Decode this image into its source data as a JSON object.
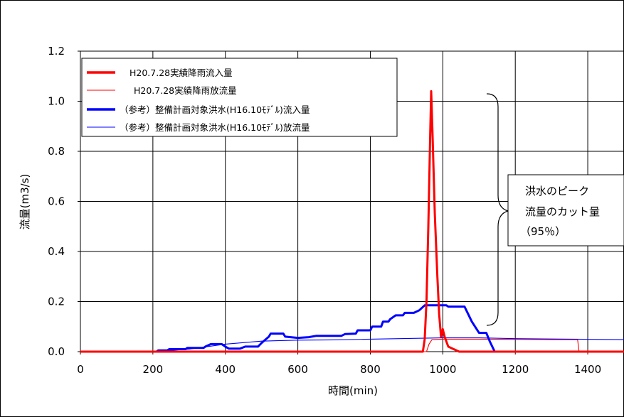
{
  "chart_data": {
    "type": "line",
    "title": "",
    "xlabel": "時間(min)",
    "ylabel": "流量(m3/s)",
    "xlim": [
      0,
      1500
    ],
    "ylim": [
      0,
      1.2
    ],
    "xticks": [
      "0",
      "200",
      "400",
      "600",
      "800",
      "1000",
      "1200",
      "1400"
    ],
    "yticks": [
      "0.0",
      "0.2",
      "0.4",
      "0.6",
      "0.8",
      "1.0",
      "1.2"
    ],
    "grid": true,
    "legend_position": "top-left",
    "series": [
      {
        "name": "H20.7.28実績降雨流入量",
        "color": "#ff0000",
        "width": "thick",
        "points": [
          [
            0,
            0
          ],
          [
            945,
            0
          ],
          [
            950,
            0.05
          ],
          [
            955,
            0.2
          ],
          [
            960,
            0.5
          ],
          [
            965,
            0.85
          ],
          [
            968,
            1.04
          ],
          [
            972,
            0.85
          ],
          [
            978,
            0.55
          ],
          [
            985,
            0.3
          ],
          [
            990,
            0.15
          ],
          [
            995,
            0.06
          ],
          [
            1000,
            0.09
          ],
          [
            1005,
            0.06
          ],
          [
            1010,
            0.04
          ],
          [
            1015,
            0.02
          ],
          [
            1030,
            0.01
          ],
          [
            1045,
            0
          ],
          [
            1500,
            0
          ]
        ]
      },
      {
        "name": "H20.7.28実績降雨放流量",
        "color": "#ff0000",
        "width": "thin",
        "points": [
          [
            0,
            0
          ],
          [
            955,
            0
          ],
          [
            962,
            0.03
          ],
          [
            970,
            0.048
          ],
          [
            1000,
            0.05
          ],
          [
            1100,
            0.05
          ],
          [
            1200,
            0.049
          ],
          [
            1300,
            0.048
          ],
          [
            1372,
            0.048
          ],
          [
            1376,
            0
          ],
          [
            1500,
            0
          ]
        ]
      },
      {
        "name": "（参考）整備計画対象洪水(H16.10ﾓﾃﾞﾙ)流入量",
        "color": "#0000ff",
        "width": "thick",
        "points": [
          [
            0,
            0
          ],
          [
            210,
            0
          ],
          [
            215,
            0.005
          ],
          [
            240,
            0.005
          ],
          [
            245,
            0.01
          ],
          [
            290,
            0.01
          ],
          [
            295,
            0.015
          ],
          [
            340,
            0.015
          ],
          [
            345,
            0.02
          ],
          [
            360,
            0.03
          ],
          [
            390,
            0.03
          ],
          [
            400,
            0.02
          ],
          [
            410,
            0.012
          ],
          [
            440,
            0.012
          ],
          [
            455,
            0.02
          ],
          [
            490,
            0.02
          ],
          [
            500,
            0.035
          ],
          [
            520,
            0.06
          ],
          [
            525,
            0.072
          ],
          [
            560,
            0.072
          ],
          [
            565,
            0.06
          ],
          [
            600,
            0.055
          ],
          [
            630,
            0.058
          ],
          [
            650,
            0.063
          ],
          [
            720,
            0.063
          ],
          [
            730,
            0.07
          ],
          [
            760,
            0.072
          ],
          [
            765,
            0.085
          ],
          [
            800,
            0.085
          ],
          [
            805,
            0.1
          ],
          [
            830,
            0.1
          ],
          [
            835,
            0.12
          ],
          [
            850,
            0.12
          ],
          [
            855,
            0.13
          ],
          [
            870,
            0.145
          ],
          [
            890,
            0.145
          ],
          [
            895,
            0.155
          ],
          [
            920,
            0.155
          ],
          [
            935,
            0.165
          ],
          [
            950,
            0.185
          ],
          [
            1010,
            0.185
          ],
          [
            1015,
            0.18
          ],
          [
            1060,
            0.18
          ],
          [
            1080,
            0.12
          ],
          [
            1100,
            0.075
          ],
          [
            1120,
            0.075
          ],
          [
            1130,
            0.04
          ],
          [
            1140,
            0.01
          ],
          [
            1143,
            0
          ],
          [
            1500,
            0
          ]
        ]
      },
      {
        "name": "（参考）整備計画対象洪水(H16.10ﾓﾃﾞﾙ)放流量",
        "color": "#0000ff",
        "width": "thin",
        "points": [
          [
            0,
            0
          ],
          [
            200,
            0
          ],
          [
            300,
            0.01
          ],
          [
            400,
            0.03
          ],
          [
            500,
            0.042
          ],
          [
            600,
            0.046
          ],
          [
            700,
            0.047
          ],
          [
            800,
            0.05
          ],
          [
            1000,
            0.055
          ],
          [
            1100,
            0.055
          ],
          [
            1200,
            0.052
          ],
          [
            1500,
            0.048
          ]
        ]
      }
    ],
    "annotation": {
      "lines": [
        "洪水のピーク",
        "流量のカット量",
        "（95％）"
      ]
    }
  }
}
